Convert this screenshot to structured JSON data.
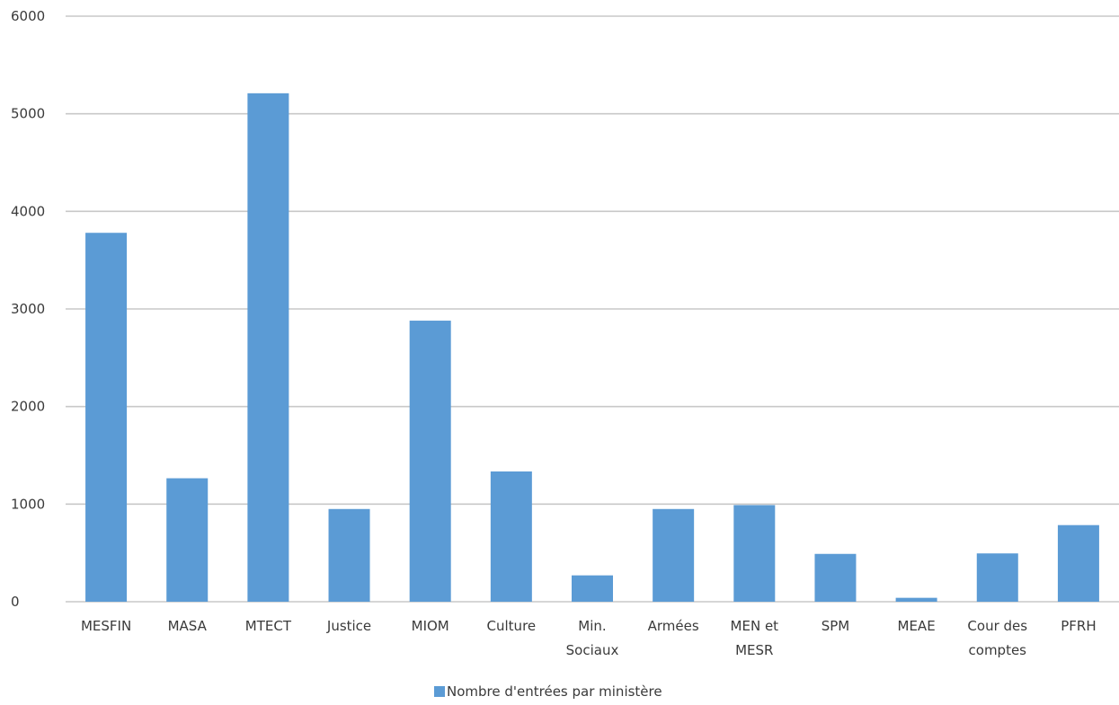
{
  "chart_data": {
    "type": "bar",
    "categories": [
      "MESFIN",
      "MASA",
      "MTECT",
      "Justice",
      "MIOM",
      "Culture",
      "Min.\nSociaux",
      "Armées",
      "MEN et\nMESR",
      "SPM",
      "MEAE",
      "Cour des\ncomptes",
      "PFRH"
    ],
    "series": [
      {
        "name": "Nombre d'entrées par ministère",
        "values": [
          3780,
          1265,
          5210,
          950,
          2880,
          1335,
          270,
          950,
          990,
          490,
          40,
          495,
          785
        ],
        "color": "#5b9bd5"
      }
    ],
    "ylim": [
      0,
      6000
    ],
    "yticks": [
      0,
      1000,
      2000,
      3000,
      4000,
      5000,
      6000
    ],
    "grid": true,
    "legend": "bottom-center"
  }
}
